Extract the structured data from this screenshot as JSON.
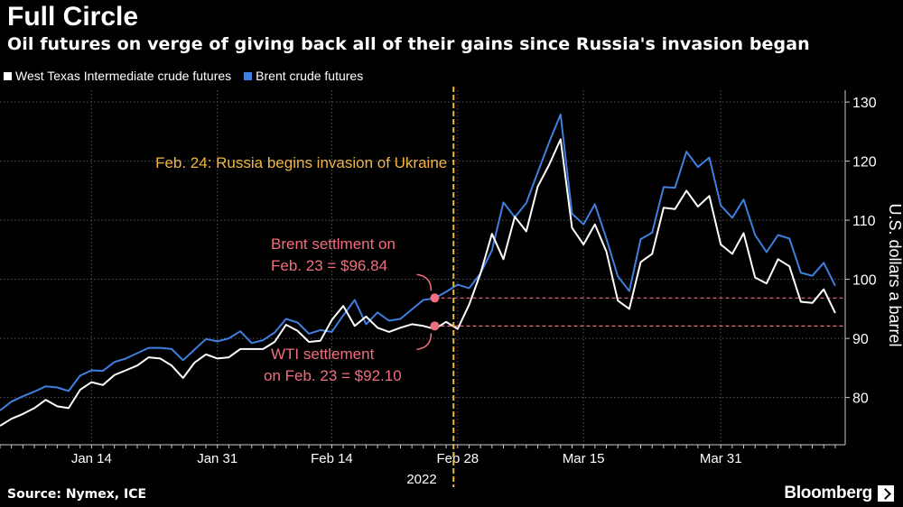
{
  "chart_data": {
    "type": "line",
    "title": "Full Circle",
    "subtitle": "Oil futures on verge of giving back all of their gains since Russia's invasion began",
    "ylabel": "U.S. dollars a barrel",
    "xlabel": "2022",
    "ylim": [
      72,
      132
    ],
    "yticks": [
      80,
      90,
      100,
      110,
      120,
      130
    ],
    "x_tick_labels": [
      {
        "label": "Jan 14",
        "index": 8
      },
      {
        "label": "Jan 31",
        "index": 19
      },
      {
        "label": "Feb 14",
        "index": 29
      },
      {
        "label": "Feb 28",
        "index": 40
      },
      {
        "label": "Mar 15",
        "index": 51
      },
      {
        "label": "Mar 31",
        "index": 63
      }
    ],
    "grid": true,
    "series": [
      {
        "name": "West Texas Intermediate crude futures",
        "color": "#ffffff",
        "values": [
          75.2,
          76.4,
          77.2,
          78.2,
          79.6,
          78.5,
          78.2,
          81.3,
          82.6,
          82.1,
          83.8,
          84.6,
          85.4,
          86.8,
          86.6,
          85.4,
          83.3,
          85.9,
          87.3,
          86.6,
          86.8,
          88.2,
          88.2,
          88.2,
          89.4,
          92.3,
          91.3,
          89.4,
          89.6,
          93.1,
          95.5,
          92.1,
          93.7,
          91.8,
          91.1,
          91.8,
          92.4,
          92.1,
          91.6,
          92.8,
          91.6,
          95.7,
          101.0,
          107.7,
          103.4,
          110.6,
          108.1,
          115.7,
          119.4,
          123.7,
          108.7,
          105.9,
          109.3,
          104.7,
          96.4,
          95.0,
          102.9,
          104.3,
          112.1,
          111.9,
          115.0,
          112.3,
          114.1,
          105.9,
          104.3,
          107.8,
          100.3,
          99.3,
          103.4,
          102.2,
          96.2,
          96.0,
          98.3,
          94.3
        ]
      },
      {
        "name": "Brent crude futures",
        "color": "#3f7fe0",
        "values": [
          77.8,
          79.3,
          80.2,
          81.0,
          81.9,
          81.7,
          81.1,
          83.7,
          84.6,
          84.5,
          86.0,
          86.6,
          87.5,
          88.4,
          88.4,
          88.2,
          86.3,
          88.1,
          89.9,
          89.5,
          90.0,
          91.2,
          89.2,
          89.7,
          91.0,
          93.3,
          92.7,
          90.8,
          91.4,
          91.1,
          93.9,
          96.5,
          92.4,
          94.4,
          93.0,
          93.3,
          94.9,
          96.5,
          96.8,
          97.9,
          99.1,
          98.5,
          101.0,
          104.9,
          113.0,
          110.5,
          112.9,
          118.1,
          123.2,
          127.9,
          111.1,
          109.3,
          112.7,
          106.9,
          100.5,
          98.0,
          106.8,
          107.9,
          115.6,
          115.5,
          121.6,
          119.0,
          120.6,
          112.5,
          110.4,
          113.5,
          107.5,
          104.6,
          107.5,
          106.9,
          101.1,
          100.6,
          102.8,
          98.9
        ]
      }
    ],
    "annotations": [
      {
        "kind": "vline",
        "index": 38.3,
        "color": "#f2b544",
        "text": "Feb. 24: Russia begins invasion of Ukraine"
      },
      {
        "kind": "hline",
        "value": 96.84,
        "from_index": 38,
        "color": "#f26d7d",
        "line1": "Brent settlment on",
        "line2": "Feb. 23 = $96.84"
      },
      {
        "kind": "hline",
        "value": 92.1,
        "from_index": 38,
        "color": "#f26d7d",
        "line1": "WTI settlement",
        "line2": "on Feb. 23 = $92.10"
      }
    ]
  },
  "footer": {
    "source": "Source: Nymex, ICE",
    "brand": "Bloomberg"
  }
}
